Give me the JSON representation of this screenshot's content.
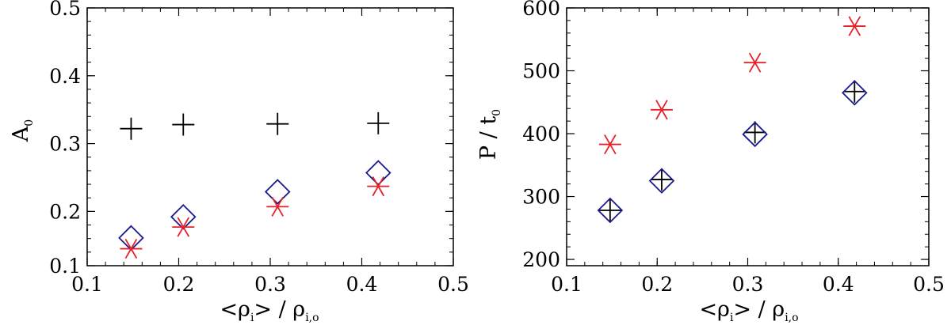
{
  "chart_data": [
    {
      "type": "scatter",
      "xlabel": "<ρi> / ρi,o",
      "ylabel": "A0",
      "xlim": [
        0.1,
        0.5
      ],
      "ylim": [
        0.12,
        0.5
      ],
      "xticks": [
        "0.1",
        "0.2",
        "0.3",
        "0.4",
        "0.5"
      ],
      "yticks": [
        "0.1",
        "0.2",
        "0.3",
        "0.4",
        "0.5"
      ],
      "xtick_values": [
        0.1,
        0.2,
        0.3,
        0.4,
        0.5
      ],
      "ytick_values": [
        0.12,
        0.2,
        0.3,
        0.4,
        0.5
      ],
      "series": [
        {
          "marker": "plus",
          "color": "#000000",
          "x": [
            0.148,
            0.205,
            0.308,
            0.418
          ],
          "y": [
            0.322,
            0.328,
            0.329,
            0.33
          ]
        },
        {
          "marker": "diamond",
          "color": "#1a1a8c",
          "x": [
            0.148,
            0.205,
            0.308,
            0.418
          ],
          "y": [
            0.161,
            0.192,
            0.229,
            0.257
          ]
        },
        {
          "marker": "asterisk",
          "color": "#e8202a",
          "x": [
            0.148,
            0.205,
            0.308,
            0.418
          ],
          "y": [
            0.145,
            0.177,
            0.207,
            0.237
          ]
        }
      ]
    },
    {
      "type": "scatter",
      "xlabel": "<ρi> / ρi,o",
      "ylabel": "P / t0",
      "xlim": [
        0.1,
        0.5
      ],
      "ylim": [
        190,
        600
      ],
      "xticks": [
        "0.1",
        "0.2",
        "0.3",
        "0.4",
        "0.5"
      ],
      "yticks": [
        "200",
        "300",
        "400",
        "500",
        "600"
      ],
      "xtick_values": [
        0.1,
        0.2,
        0.3,
        0.4,
        0.5
      ],
      "ytick_values": [
        200,
        300,
        400,
        500,
        600
      ],
      "series": [
        {
          "marker": "plus",
          "color": "#000000",
          "x": [
            0.148,
            0.205,
            0.308,
            0.418
          ],
          "y": [
            278,
            327,
            402,
            467
          ]
        },
        {
          "marker": "diamond",
          "color": "#1a1a8c",
          "x": [
            0.148,
            0.205,
            0.308,
            0.418
          ],
          "y": [
            278,
            325,
            399,
            465
          ]
        },
        {
          "marker": "asterisk",
          "color": "#e8202a",
          "x": [
            0.148,
            0.205,
            0.308,
            0.418
          ],
          "y": [
            383,
            438,
            513,
            571
          ]
        }
      ]
    }
  ]
}
